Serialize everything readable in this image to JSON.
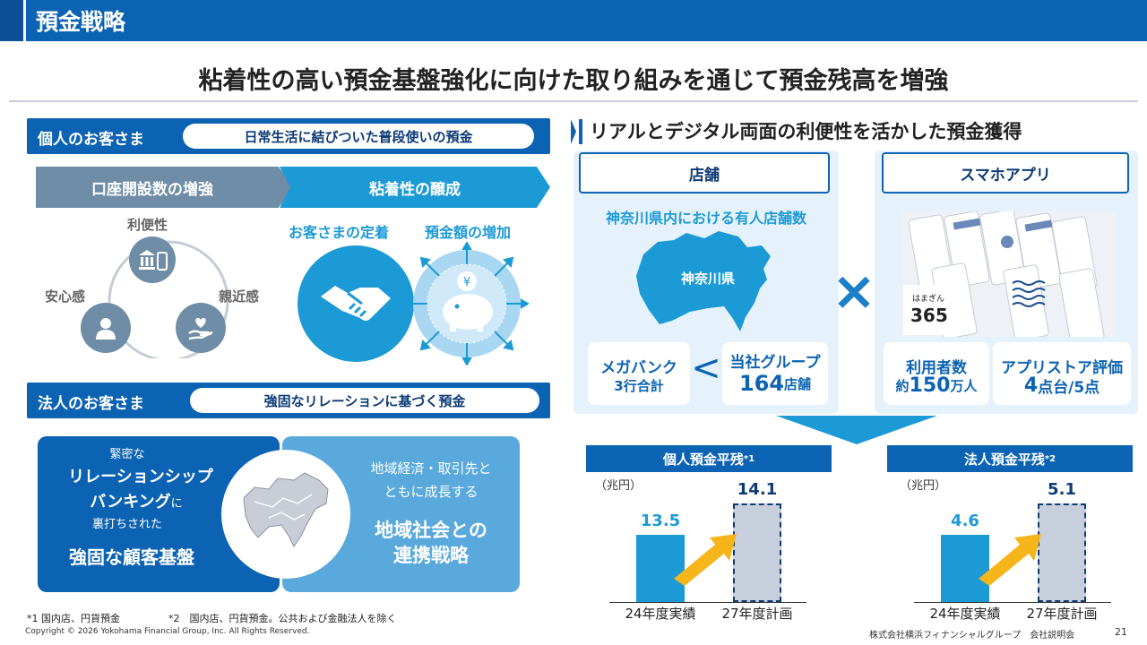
{
  "header": {
    "title": "預金戦略"
  },
  "subtitle": "粘着性の高い預金基盤強化に向けた取り組みを通じて預金残高を増強",
  "individual": {
    "label": "個人のお客さま",
    "pill": "日常生活に結びついた普段使いの預金",
    "step1": "口座開設数の増強",
    "step2": "粘着性の醸成",
    "triangle": {
      "top": "利便性",
      "left": "安心感",
      "right": "親近感"
    },
    "retention": "お客さまの定着",
    "increase": "預金額の増加"
  },
  "corporate": {
    "label": "法人のお客さま",
    "pill": "強固なリレーションに基づく預金",
    "left": {
      "l1": "緊密な",
      "l2": "リレーションシップ",
      "l3a": "バンキング",
      "l3b": "に",
      "l4": "裏打ちされた",
      "l5": "強固な顧客基盤"
    },
    "right": {
      "l1": "地域経済・取引先と",
      "l2": "ともに成長する",
      "l3": "地域社会との",
      "l4": "連携戦略"
    }
  },
  "right": {
    "heading": "リアルとデジタル両面の利便性を活かした預金獲得",
    "store": {
      "title": "店舗",
      "subtitle": "神奈川県内における有人店舗数",
      "map_label": "神奈川県",
      "megabank_l1": "メガバンク",
      "megabank_l2": "3行合計",
      "less_than": "<",
      "group_l1": "当社グループ",
      "group_num": "164",
      "group_unit": "店舗"
    },
    "cross": "×",
    "app": {
      "title": "スマホアプリ",
      "logo_small": "はまぎん",
      "logo_big": "365",
      "users_l1": "利用者数",
      "users_pre": "約",
      "users_num": "150",
      "users_unit": "万人",
      "rating_l1": "アプリストア評価",
      "rating_num": "4",
      "rating_unit": "点台/5点"
    }
  },
  "chart_data": [
    {
      "type": "bar",
      "title": "個人預金平残",
      "title_sup": "*1",
      "unit": "（兆円）",
      "categories": [
        "24年度実績",
        "27年度計画"
      ],
      "values": [
        13.5,
        14.1
      ],
      "colors": [
        "#1c9ad6",
        "#c8cfdc"
      ]
    },
    {
      "type": "bar",
      "title": "法人預金平残",
      "title_sup": "*2",
      "unit": "（兆円）",
      "categories": [
        "24年度実績",
        "27年度計画"
      ],
      "values": [
        4.6,
        5.1
      ],
      "colors": [
        "#1c9ad6",
        "#c8cfdc"
      ]
    }
  ],
  "footer": {
    "note1": "*1 国内店、円貨預金",
    "note2": "*2　国内店、円貨預金。公共および金融法人を除く",
    "copyright": "Copyright © 2026 Yokohama Financial Group, Inc. All Rights Reserved.",
    "company": "株式会社横浜フィナンシャルグループ　会社説明会",
    "page": "21"
  },
  "colors": {
    "brand": "#0d63b3",
    "accent": "#1c9ad6",
    "arrow": "#f5b51b",
    "muted": "#6f8da6"
  }
}
